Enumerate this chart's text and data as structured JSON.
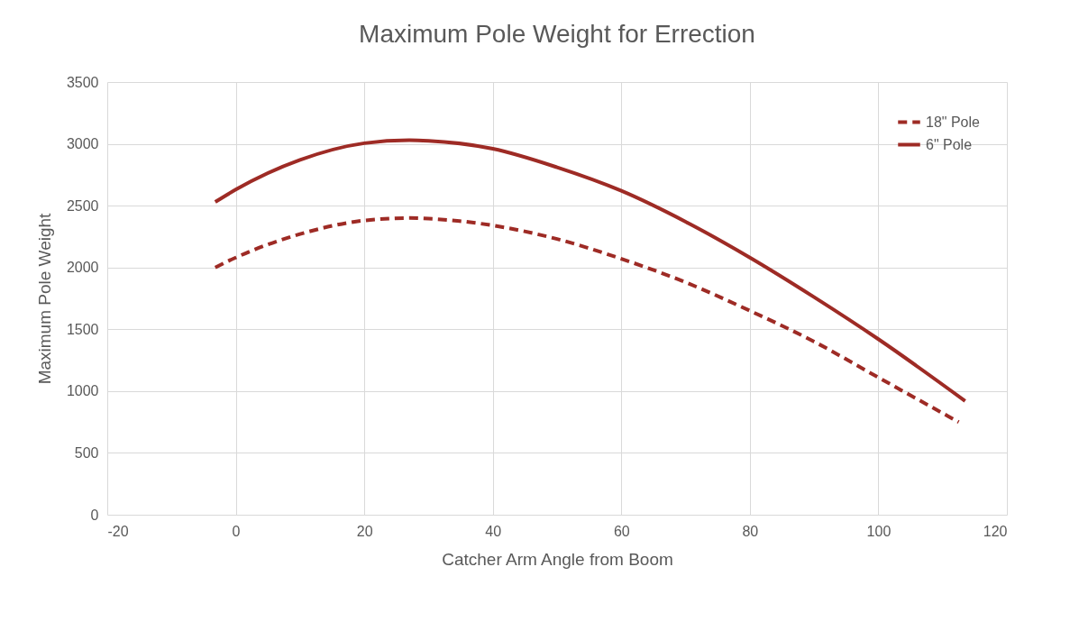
{
  "chart_data": {
    "type": "line",
    "title": "Maximum Pole Weight for Errection",
    "xlabel": "Catcher Arm Angle from Boom",
    "ylabel": "Maximum Pole Weight",
    "xlim": [
      -20,
      120
    ],
    "xticks": [
      -20,
      0,
      20,
      40,
      60,
      80,
      100,
      120
    ],
    "ylim": [
      0,
      3500
    ],
    "yticks": [
      0,
      500,
      1000,
      1500,
      2000,
      2500,
      3000,
      3500
    ],
    "grid": true,
    "legend": "top right",
    "series": [
      {
        "name": "18\" Pole",
        "color": "#9e2b25",
        "line_style": "dashed",
        "x": [
          -3.2,
          0,
          10,
          20,
          27,
          30,
          40,
          50,
          60,
          70,
          80,
          90,
          100,
          112.5
        ],
        "values": [
          2000,
          2080,
          2270,
          2380,
          2400,
          2395,
          2340,
          2230,
          2070,
          1880,
          1650,
          1400,
          1110,
          750
        ]
      },
      {
        "name": "6\" Pole",
        "color": "#9e2b25",
        "line_style": "solid",
        "x": [
          -3.2,
          0,
          10,
          20,
          27,
          30,
          40,
          50,
          60,
          70,
          80,
          90,
          100,
          113.5
        ],
        "values": [
          2530,
          2630,
          2870,
          3005,
          3030,
          3025,
          2960,
          2810,
          2620,
          2370,
          2080,
          1760,
          1420,
          920
        ]
      }
    ]
  }
}
